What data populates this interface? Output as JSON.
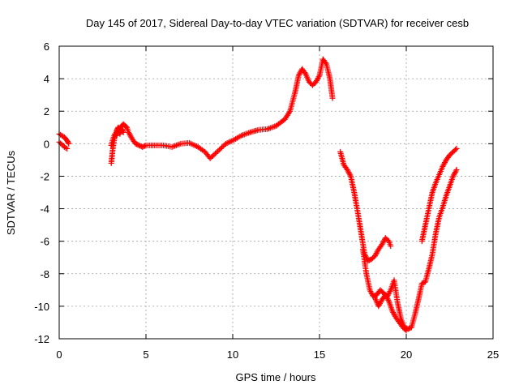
{
  "chart_data": {
    "type": "scatter",
    "title": "Day 145 of 2017, Sidereal Day-to-day VTEC variation (SDTVAR) for receiver cesb",
    "xlabel": "GPS time / hours",
    "ylabel": "SDTVAR / TECUs",
    "xlim": [
      0,
      25
    ],
    "ylim": [
      -12,
      6
    ],
    "x_ticks": [
      0,
      5,
      10,
      15,
      20,
      25
    ],
    "y_ticks": [
      -12,
      -10,
      -8,
      -6,
      -4,
      -2,
      0,
      2,
      4,
      6
    ],
    "x_tick_labels": [
      "0",
      "5",
      "10",
      "15",
      "20",
      "25"
    ],
    "y_tick_labels": [
      "-12",
      "-10",
      "-8",
      "-6",
      "-4",
      "-2",
      "0",
      "2",
      "4",
      "6"
    ],
    "grid": true,
    "marker": "plus",
    "color": "#ff0000",
    "series": [
      {
        "x": [
          0.0,
          0.15,
          0.3,
          0.45,
          0.55
        ],
        "y": [
          0.6,
          0.5,
          0.4,
          0.2,
          0.0
        ]
      },
      {
        "x": [
          0.0,
          0.15,
          0.3,
          0.45
        ],
        "y": [
          0.1,
          -0.05,
          -0.2,
          -0.3
        ]
      },
      {
        "x": [
          3.0,
          3.1,
          3.2,
          3.3,
          3.4,
          3.5,
          3.6,
          3.7,
          3.8,
          3.9,
          4.0,
          4.2,
          4.4,
          4.6,
          4.8,
          5.0,
          5.5,
          6.0,
          6.5,
          7.0,
          7.5,
          8.0,
          8.4,
          8.7,
          9.0,
          9.3,
          9.6,
          10.0,
          10.5,
          11.0,
          11.5,
          12.0,
          12.5,
          13.0,
          13.3,
          13.6,
          13.8,
          14.0,
          14.2,
          14.4,
          14.6,
          14.8,
          15.0,
          15.2,
          15.4,
          15.6,
          15.75
        ],
        "y": [
          -1.2,
          -0.2,
          0.4,
          0.8,
          1.0,
          0.9,
          1.1,
          1.2,
          1.1,
          1.0,
          0.7,
          0.3,
          0.0,
          -0.1,
          -0.2,
          -0.1,
          -0.1,
          -0.1,
          -0.2,
          0.0,
          0.05,
          -0.2,
          -0.5,
          -0.9,
          -0.6,
          -0.3,
          0.0,
          0.2,
          0.5,
          0.7,
          0.85,
          0.9,
          1.1,
          1.5,
          2.0,
          3.2,
          4.2,
          4.6,
          4.3,
          3.8,
          3.6,
          3.8,
          4.2,
          5.2,
          4.9,
          4.0,
          2.8
        ]
      },
      {
        "x": [
          3.0,
          3.1,
          3.2,
          3.3,
          3.4,
          3.5,
          3.6,
          3.7
        ],
        "y": [
          -0.1,
          0.3,
          0.6,
          0.5,
          0.8,
          0.6,
          0.9,
          0.7
        ]
      },
      {
        "x": [
          16.2,
          16.4,
          16.6,
          16.8,
          17.0,
          17.2,
          17.4,
          17.6,
          17.8,
          18.0,
          18.2,
          18.4,
          18.6,
          18.8,
          19.0,
          19.1
        ],
        "y": [
          -0.5,
          -1.3,
          -1.6,
          -2.0,
          -3.0,
          -4.2,
          -5.5,
          -6.8,
          -7.2,
          -7.1,
          -6.9,
          -6.5,
          -6.2,
          -5.8,
          -6.0,
          -6.3
        ]
      },
      {
        "x": [
          17.5,
          17.7,
          17.9,
          18.1,
          18.3,
          18.5,
          18.7,
          18.9,
          19.1,
          19.3,
          19.5,
          19.7,
          19.9,
          20.1,
          20.3,
          20.5,
          20.7,
          20.9,
          21.1,
          21.3,
          21.5,
          21.7,
          21.9,
          22.1,
          22.3,
          22.5,
          22.7,
          22.9
        ],
        "y": [
          -6.5,
          -8.0,
          -9.0,
          -9.4,
          -9.3,
          -9.0,
          -9.2,
          -9.4,
          -9.0,
          -8.4,
          -9.8,
          -10.8,
          -11.3,
          -11.4,
          -11.3,
          -10.5,
          -9.6,
          -8.6,
          -8.5,
          -7.7,
          -6.8,
          -5.5,
          -4.5,
          -3.9,
          -3.2,
          -2.6,
          -2.0,
          -1.6
        ]
      },
      {
        "x": [
          18.2,
          18.4,
          18.6,
          18.8,
          19.0,
          19.2,
          19.4,
          19.6,
          19.8,
          20.0
        ],
        "y": [
          -9.5,
          -10.0,
          -9.6,
          -9.3,
          -9.7,
          -10.3,
          -10.7,
          -11.0,
          -11.3,
          -11.5
        ]
      },
      {
        "x": [
          20.9,
          21.1,
          21.3,
          21.5,
          21.7,
          21.9,
          22.1,
          22.3,
          22.5,
          22.7,
          22.9
        ],
        "y": [
          -6.0,
          -5.0,
          -4.0,
          -3.0,
          -2.4,
          -1.9,
          -1.4,
          -1.0,
          -0.7,
          -0.5,
          -0.3
        ]
      }
    ]
  }
}
